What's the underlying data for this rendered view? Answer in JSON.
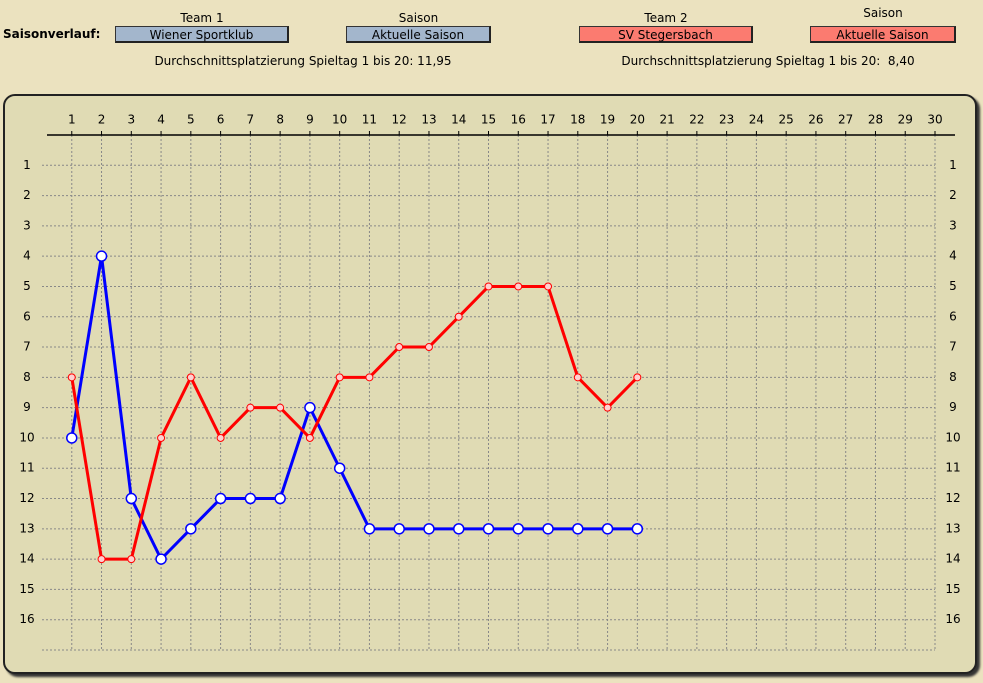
{
  "header": {
    "label": "Saisonverlauf:",
    "team1_label": "Team 1",
    "season1_label": "Saison",
    "season1": "Aktuelle Saison",
    "team2_label": "Team 2",
    "season2_label": "Saison",
    "season2": "Aktuelle Saison",
    "avg1": "Durchschnittsplatzierung Spieltag 1 bis 20: 11,95",
    "avg2": "Durchschnittsplatzierung Spieltag 1 bis 20:  8,40"
  },
  "chart_data": {
    "type": "line",
    "x": [
      1,
      2,
      3,
      4,
      5,
      6,
      7,
      8,
      9,
      10,
      11,
      12,
      13,
      14,
      15,
      16,
      17,
      18,
      19,
      20
    ],
    "series": [
      {
        "name": "Wiener Sportklub",
        "color": "#0000ff",
        "values": [
          10,
          4,
          12,
          14,
          13,
          12,
          12,
          12,
          9,
          11,
          13,
          13,
          13,
          13,
          13,
          13,
          13,
          13,
          13,
          13
        ]
      },
      {
        "name": "SV Stegersbach",
        "color": "#ff0000",
        "values": [
          8,
          14,
          14,
          10,
          8,
          10,
          9,
          9,
          10,
          8,
          8,
          7,
          7,
          6,
          5,
          5,
          5,
          8,
          9,
          8
        ]
      }
    ],
    "xlim": [
      0,
      30
    ],
    "xticks": [
      1,
      2,
      3,
      4,
      5,
      6,
      7,
      8,
      9,
      10,
      11,
      12,
      13,
      14,
      15,
      16,
      17,
      18,
      19,
      20,
      21,
      22,
      23,
      24,
      25,
      26,
      27,
      28,
      29,
      30
    ],
    "ylim": [
      0,
      17
    ],
    "y_inverted": true,
    "yticks": [
      1,
      2,
      3,
      4,
      5,
      6,
      7,
      8,
      9,
      10,
      11,
      12,
      13,
      14,
      15,
      16
    ],
    "grid": true
  }
}
